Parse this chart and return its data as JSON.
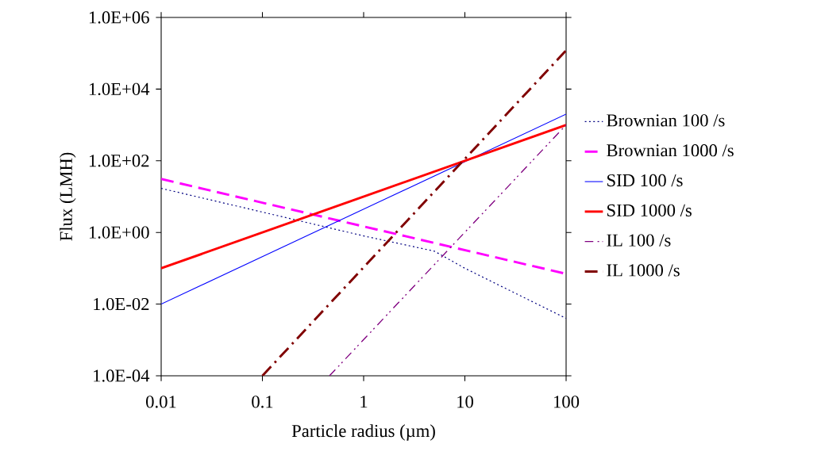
{
  "chart_data": {
    "type": "line",
    "xlabel": "Particle radius (µm)",
    "ylabel": "Flux (LMH)",
    "log": "xy",
    "grid": false,
    "legend": "right",
    "marker": "none",
    "xlim": [
      0.01,
      100
    ],
    "ylim": [
      0.0001,
      1000000
    ],
    "xticks": [
      0.01,
      0.1,
      1,
      10,
      100
    ],
    "yticks": [
      {
        "value": 0.0001,
        "label": "1.0E-04"
      },
      {
        "value": 0.01,
        "label": "1.0E-02"
      },
      {
        "value": 1,
        "label": "1.0E+00"
      },
      {
        "value": 100,
        "label": "1.0E+02"
      },
      {
        "value": 10000,
        "label": "1.0E+04"
      },
      {
        "value": 1000000,
        "label": "1.0E+06"
      }
    ],
    "series": [
      {
        "name": "Brownian 100 /s",
        "color": "#000080",
        "line_style": "dotted",
        "x": [
          0.01,
          0.1,
          1,
          5,
          10,
          100
        ],
        "values": [
          17,
          3.7,
          0.8,
          0.3,
          0.1,
          0.004
        ]
      },
      {
        "name": "Brownian 1000 /s",
        "color": "#ff00ff",
        "line_style": "dashed",
        "x": [
          0.01,
          100
        ],
        "values": [
          31,
          0.07
        ]
      },
      {
        "name": "SID 100 /s",
        "color": "#0000ff",
        "line_style": "solid",
        "x": [
          0.01,
          100
        ],
        "values": [
          0.01,
          2000
        ]
      },
      {
        "name": "SID 1000 /s",
        "color": "#ff0000",
        "line_style": "solid",
        "x": [
          0.01,
          100
        ],
        "values": [
          0.1,
          1000
        ]
      },
      {
        "name": "IL 100 /s",
        "color": "#800080",
        "line_style": "dashdotdot",
        "x": [
          0.46,
          100
        ],
        "values": [
          0.0001,
          1000
        ]
      },
      {
        "name": "IL 1000 /s",
        "color": "#800000",
        "line_style": "dashdot",
        "x": [
          0.1,
          100
        ],
        "values": [
          0.0001,
          120000
        ]
      }
    ]
  }
}
